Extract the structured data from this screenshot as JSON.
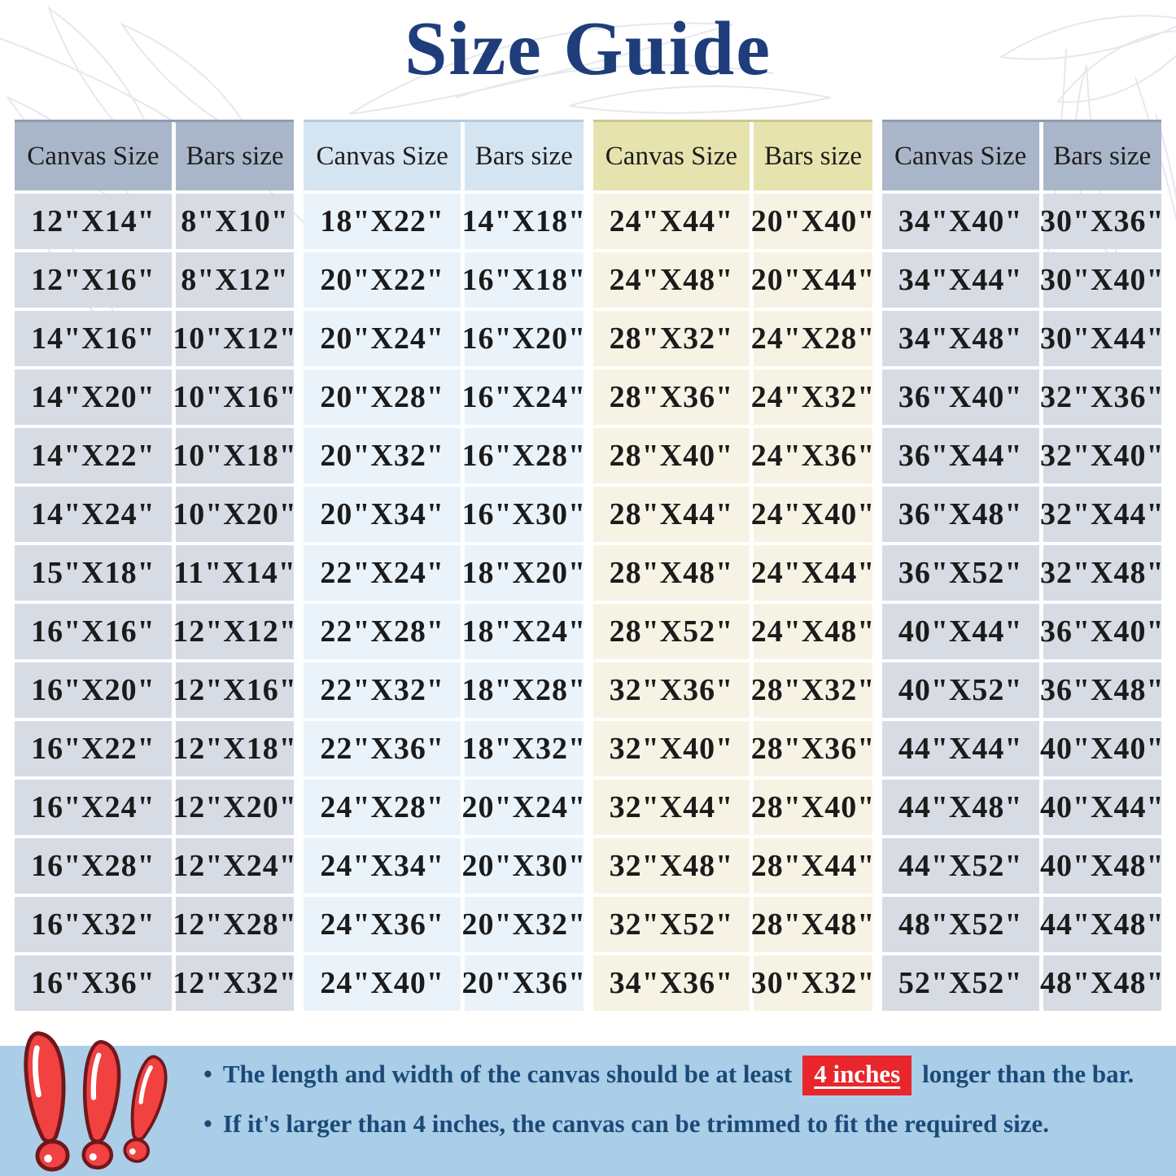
{
  "title": "Size Guide",
  "tables": [
    {
      "theme": "slate",
      "canvas_header": "Canvas Size",
      "bars_header": "Bars size",
      "rows": [
        [
          "12\"X14\"",
          "8\"X10\""
        ],
        [
          "12\"X16\"",
          "8\"X12\""
        ],
        [
          "14\"X16\"",
          "10\"X12\""
        ],
        [
          "14\"X20\"",
          "10\"X16\""
        ],
        [
          "14\"X22\"",
          "10\"X18\""
        ],
        [
          "14\"X24\"",
          "10\"X20\""
        ],
        [
          "15\"X18\"",
          "11\"X14\""
        ],
        [
          "16\"X16\"",
          "12\"X12\""
        ],
        [
          "16\"X20\"",
          "12\"X16\""
        ],
        [
          "16\"X22\"",
          "12\"X18\""
        ],
        [
          "16\"X24\"",
          "12\"X20\""
        ],
        [
          "16\"X28\"",
          "12\"X24\""
        ],
        [
          "16\"X32\"",
          "12\"X28\""
        ],
        [
          "16\"X36\"",
          "12\"X32\""
        ]
      ]
    },
    {
      "theme": "sky",
      "canvas_header": "Canvas Size",
      "bars_header": "Bars size",
      "rows": [
        [
          "18\"X22\"",
          "14\"X18\""
        ],
        [
          "20\"X22\"",
          "16\"X18\""
        ],
        [
          "20\"X24\"",
          "16\"X20\""
        ],
        [
          "20\"X28\"",
          "16\"X24\""
        ],
        [
          "20\"X32\"",
          "16\"X28\""
        ],
        [
          "20\"X34\"",
          "16\"X30\""
        ],
        [
          "22\"X24\"",
          "18\"X20\""
        ],
        [
          "22\"X28\"",
          "18\"X24\""
        ],
        [
          "22\"X32\"",
          "18\"X28\""
        ],
        [
          "22\"X36\"",
          "18\"X32\""
        ],
        [
          "24\"X28\"",
          "20\"X24\""
        ],
        [
          "24\"X34\"",
          "20\"X30\""
        ],
        [
          "24\"X36\"",
          "20\"X32\""
        ],
        [
          "24\"X40\"",
          "20\"X36\""
        ]
      ]
    },
    {
      "theme": "cream",
      "canvas_header": "Canvas Size",
      "bars_header": "Bars size",
      "rows": [
        [
          "24\"X44\"",
          "20\"X40\""
        ],
        [
          "24\"X48\"",
          "20\"X44\""
        ],
        [
          "28\"X32\"",
          "24\"X28\""
        ],
        [
          "28\"X36\"",
          "24\"X32\""
        ],
        [
          "28\"X40\"",
          "24\"X36\""
        ],
        [
          "28\"X44\"",
          "24\"X40\""
        ],
        [
          "28\"X48\"",
          "24\"X44\""
        ],
        [
          "28\"X52\"",
          "24\"X48\""
        ],
        [
          "32\"X36\"",
          "28\"X32\""
        ],
        [
          "32\"X40\"",
          "28\"X36\""
        ],
        [
          "32\"X44\"",
          "28\"X40\""
        ],
        [
          "32\"X48\"",
          "28\"X44\""
        ],
        [
          "32\"X52\"",
          "28\"X48\""
        ],
        [
          "34\"X36\"",
          "30\"X32\""
        ]
      ]
    },
    {
      "theme": "slate",
      "canvas_header": "Canvas Size",
      "bars_header": "Bars size",
      "rows": [
        [
          "34\"X40\"",
          "30\"X36\""
        ],
        [
          "34\"X44\"",
          "30\"X40\""
        ],
        [
          "34\"X48\"",
          "30\"X44\""
        ],
        [
          "36\"X40\"",
          "32\"X36\""
        ],
        [
          "36\"X44\"",
          "32\"X40\""
        ],
        [
          "36\"X48\"",
          "32\"X44\""
        ],
        [
          "36\"X52\"",
          "32\"X48\""
        ],
        [
          "40\"X44\"",
          "36\"X40\""
        ],
        [
          "40\"X52\"",
          "36\"X48\""
        ],
        [
          "44\"X44\"",
          "40\"X40\""
        ],
        [
          "44\"X48\"",
          "40\"X44\""
        ],
        [
          "44\"X52\"",
          "40\"X48\""
        ],
        [
          "48\"X52\"",
          "44\"X48\""
        ],
        [
          "52\"X52\"",
          "48\"X48\""
        ]
      ]
    }
  ],
  "notes": {
    "bullet": "•",
    "bullet1": {
      "before": "The length and width of the canvas should be at least",
      "highlight": "4 inches",
      "after": "longer than the bar."
    },
    "bullet2": "If it's larger than 4 inches, the canvas can be trimmed to fit the required size."
  },
  "colors": {
    "title_text": "#1e3d7a",
    "note_text": "#1c4a77",
    "highlight_bg": "#e8262b",
    "highlight_text": "#ffffff",
    "footer_bg": "#aacee8",
    "slate_header": "#a9b6ca",
    "slate_body": "#d6dbe4",
    "sky_header": "#d5e4f1",
    "sky_body": "#ebf3fa",
    "cream_header": "#e6e3ae",
    "cream_body": "#f6f3e4",
    "exclamation_red": "#f14140"
  }
}
